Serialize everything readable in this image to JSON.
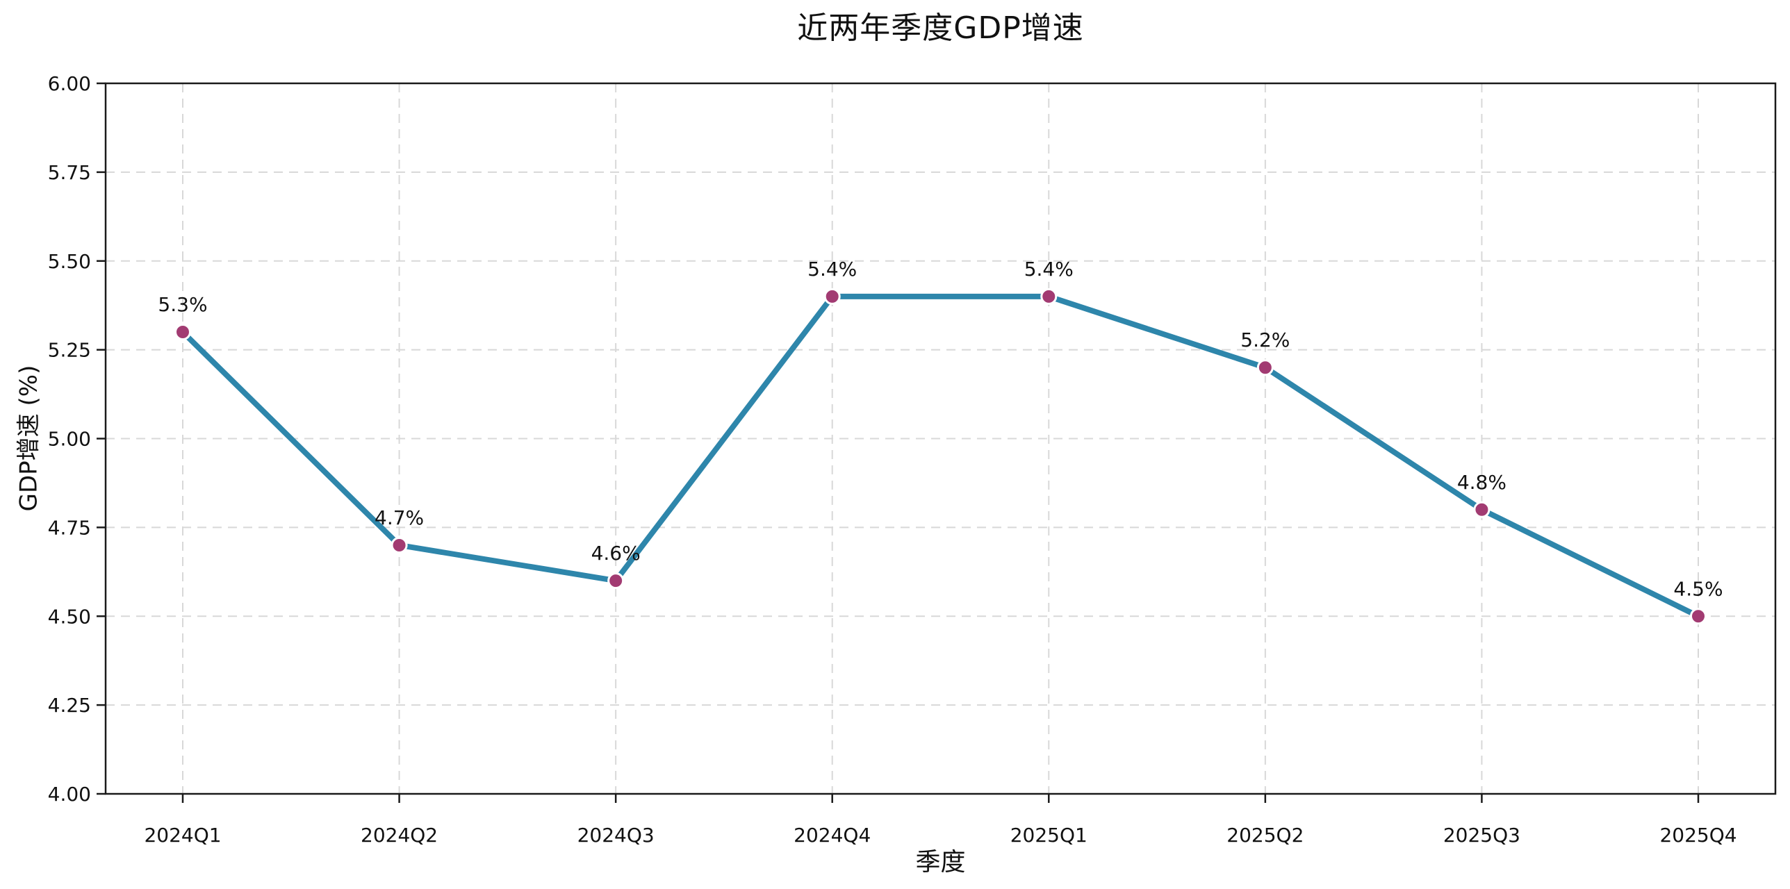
{
  "chart_data": {
    "type": "line",
    "title": "近两年季度GDP增速",
    "xlabel": "季度",
    "ylabel": "GDP增速 (%)",
    "categories": [
      "2024Q1",
      "2024Q2",
      "2024Q3",
      "2024Q4",
      "2025Q1",
      "2025Q2",
      "2025Q3",
      "2025Q4"
    ],
    "values": [
      5.3,
      4.7,
      4.6,
      5.4,
      5.4,
      5.2,
      4.8,
      4.5
    ],
    "point_labels": [
      "5.3%",
      "4.7%",
      "4.6%",
      "5.4%",
      "5.4%",
      "5.2%",
      "4.8%",
      "4.5%"
    ],
    "ylim": [
      4.0,
      6.0
    ],
    "ytick_step": 0.25,
    "ytick_labels": [
      "4.00",
      "4.25",
      "4.50",
      "4.75",
      "5.00",
      "5.25",
      "5.50",
      "5.75",
      "6.00"
    ],
    "grid": "dashed-both-axes",
    "legend": "none",
    "colors": {
      "line": "#2E86AB",
      "marker": "#A23B72",
      "marker_edge": "#FFFFFF",
      "grid": "#D8D8D8",
      "spine": "#1A1A1A",
      "text": "#111111",
      "background": "#FFFFFF"
    }
  }
}
